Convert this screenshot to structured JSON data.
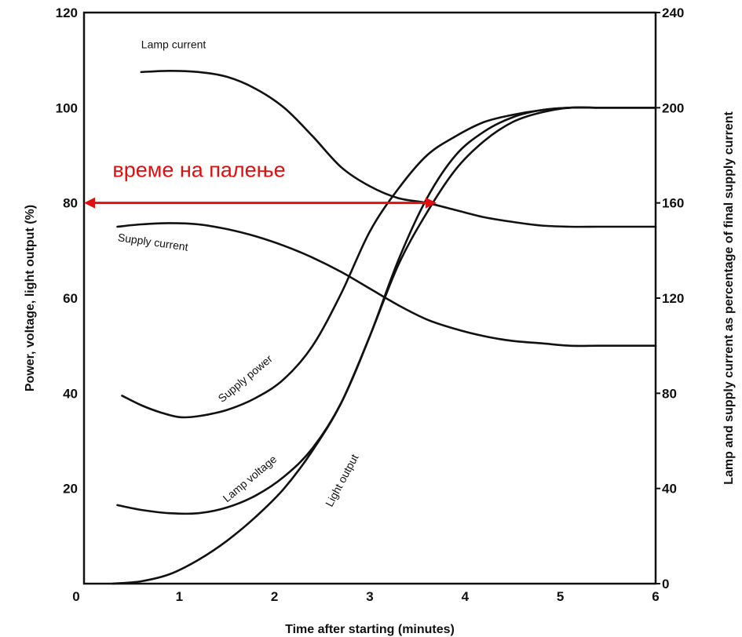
{
  "chart_data": {
    "type": "line",
    "xlabel": "Time after starting (minutes)",
    "ylabel_left": "Power, voltage, light output (%)",
    "ylabel_right": "Lamp and supply current as percentage of final supply current",
    "xlim": [
      0,
      6
    ],
    "ylim_left": [
      0,
      120
    ],
    "ylim_right": [
      0,
      240
    ],
    "x_ticks": [
      "0",
      "1",
      "2",
      "3",
      "4",
      "5",
      "6"
    ],
    "y_left_ticks": [
      "20",
      "40",
      "60",
      "80",
      "100",
      "120"
    ],
    "y_right_ticks": [
      "0",
      "40",
      "80",
      "120",
      "160",
      "200",
      "240"
    ],
    "grid": false,
    "series": [
      {
        "name": "Lamp current",
        "axis": "right",
        "x": [
          0.6,
          0.9,
          1.2,
          1.5,
          1.8,
          2.1,
          2.4,
          2.7,
          3.0,
          3.3,
          3.6,
          3.9,
          4.2,
          4.5,
          4.8,
          5.1,
          5.4,
          5.7,
          6.0
        ],
        "values": [
          215,
          215.5,
          215,
          213,
          208,
          200,
          188,
          175,
          167,
          162,
          160,
          157,
          154,
          152,
          150.5,
          150,
          150,
          150,
          150
        ]
      },
      {
        "name": "Supply current",
        "axis": "right",
        "x": [
          0.35,
          0.6,
          0.9,
          1.2,
          1.5,
          1.8,
          2.1,
          2.4,
          2.7,
          3.0,
          3.3,
          3.6,
          3.9,
          4.2,
          4.5,
          4.8,
          5.1,
          5.4,
          5.7,
          6.0
        ],
        "values": [
          150,
          151,
          151.5,
          151,
          149,
          146,
          142,
          137,
          131,
          124,
          117,
          111,
          107,
          104,
          102,
          101,
          100,
          100,
          100,
          100
        ]
      },
      {
        "name": "Supply power",
        "axis": "left",
        "x": [
          0.4,
          0.6,
          0.8,
          1.0,
          1.2,
          1.5,
          1.8,
          2.1,
          2.4,
          2.7,
          3.0,
          3.3,
          3.6,
          3.9,
          4.2,
          4.5,
          4.8,
          5.1,
          5.4,
          5.7,
          6.0
        ],
        "values": [
          39.5,
          37.5,
          36,
          35,
          35.2,
          36.5,
          39,
          43,
          50,
          61,
          74,
          83,
          90,
          94,
          97,
          98.5,
          99.5,
          100,
          100,
          100,
          100
        ]
      },
      {
        "name": "Lamp voltage",
        "axis": "left",
        "x": [
          0.35,
          0.6,
          0.9,
          1.2,
          1.5,
          1.8,
          2.1,
          2.4,
          2.7,
          3.0,
          3.3,
          3.6,
          3.9,
          4.2,
          4.5,
          4.8,
          5.1,
          5.4,
          5.7,
          6.0
        ],
        "values": [
          16.5,
          15.5,
          14.8,
          14.8,
          16,
          18.5,
          22.5,
          28.5,
          38,
          52,
          68,
          81,
          90,
          95,
          98,
          99.5,
          100,
          100,
          100,
          100
        ]
      },
      {
        "name": "Light output",
        "axis": "left",
        "x": [
          0.3,
          0.6,
          0.9,
          1.2,
          1.5,
          1.8,
          2.1,
          2.4,
          2.7,
          3.0,
          3.3,
          3.6,
          3.9,
          4.2,
          4.5,
          4.8,
          5.1,
          5.4,
          5.7,
          6.0
        ],
        "values": [
          0,
          0.5,
          2,
          5,
          9,
          14,
          20,
          28,
          38,
          52,
          67,
          78,
          87,
          93,
          97,
          99,
          100,
          100,
          100,
          100
        ]
      }
    ],
    "annotation": {
      "text": "време на палење",
      "x_start": 0,
      "x_end": 3.7,
      "y": 80,
      "color": "#e01010"
    }
  }
}
